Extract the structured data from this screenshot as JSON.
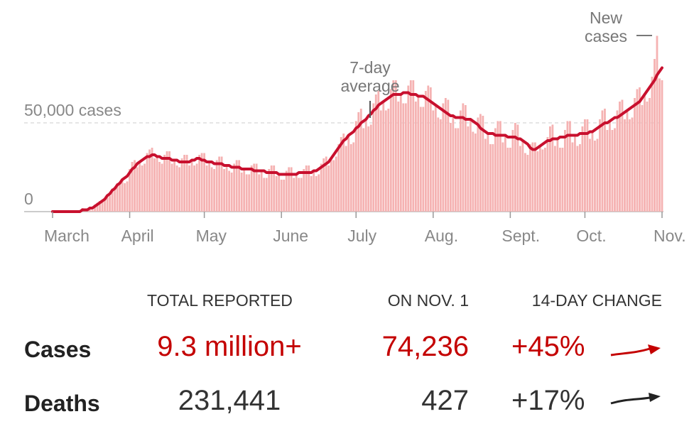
{
  "chart_data": {
    "type": "bar-line",
    "categories": [
      "March",
      null,
      null,
      null,
      null,
      null,
      null,
      null,
      null,
      null,
      null,
      null,
      null,
      null,
      null,
      null,
      null,
      null,
      null,
      null,
      null,
      null,
      null,
      null,
      null,
      null,
      null,
      null,
      null,
      null,
      null,
      "April",
      null,
      null,
      null,
      null,
      null,
      null,
      null,
      null,
      null,
      null,
      null,
      null,
      null,
      null,
      null,
      null,
      null,
      null,
      null,
      null,
      null,
      null,
      null,
      null,
      null,
      null,
      null,
      null,
      null,
      "May",
      null,
      null,
      null,
      null,
      null,
      null,
      null,
      null,
      null,
      null,
      null,
      null,
      null,
      null,
      null,
      null,
      null,
      null,
      null,
      null,
      null,
      null,
      null,
      null,
      null,
      null,
      null,
      null,
      null,
      null,
      "June",
      null,
      null,
      null,
      null,
      null,
      null,
      null,
      null,
      null,
      null,
      null,
      null,
      null,
      null,
      null,
      null,
      null,
      null,
      null,
      null,
      null,
      null,
      null,
      null,
      null,
      null,
      null,
      null,
      null,
      "July",
      null,
      null,
      null,
      null,
      null,
      null,
      null,
      null,
      null,
      null,
      null,
      null,
      null,
      null,
      null,
      null,
      null,
      null,
      null,
      null,
      null,
      null,
      null,
      null,
      null,
      null,
      null,
      null,
      null,
      null,
      "Aug.",
      null,
      null,
      null,
      null,
      null,
      null,
      null,
      null,
      null,
      null,
      null,
      null,
      null,
      null,
      null,
      null,
      null,
      null,
      null,
      null,
      null,
      null,
      null,
      null,
      null,
      null,
      null,
      null,
      null,
      null,
      "Sept.",
      null,
      null,
      null,
      null,
      null,
      null,
      null,
      null,
      null,
      null,
      null,
      null,
      null,
      null,
      null,
      null,
      null,
      null,
      null,
      null,
      null,
      null,
      null,
      null,
      null,
      null,
      null,
      null,
      null,
      "Oct.",
      null,
      null,
      null,
      null,
      null,
      null,
      null,
      null,
      null,
      null,
      null,
      null,
      null,
      null,
      null,
      null,
      null,
      null,
      null,
      null,
      null,
      null,
      null,
      null,
      null,
      null,
      null,
      null,
      null,
      null,
      "Nov."
    ],
    "series": [
      {
        "name": "New cases",
        "type": "bar",
        "color": "#f5b2b2",
        "values": [
          0,
          0,
          0,
          0,
          0,
          0,
          0,
          0,
          0,
          0,
          0,
          0,
          2000,
          1000,
          1000,
          1000,
          1000,
          4000,
          5000,
          6000,
          6000,
          7000,
          8000,
          9000,
          13000,
          14000,
          16000,
          16000,
          18000,
          16000,
          17000,
          24000,
          28000,
          29000,
          25000,
          28000,
          26000,
          27000,
          33000,
          35000,
          36000,
          30000,
          31000,
          28000,
          27000,
          32000,
          34000,
          34000,
          27000,
          29000,
          26000,
          25000,
          30000,
          32000,
          32000,
          26000,
          29000,
          26000,
          27000,
          32000,
          33000,
          33000,
          26000,
          28000,
          25000,
          24000,
          29000,
          31000,
          31000,
          24000,
          26000,
          23000,
          22000,
          27000,
          29000,
          29000,
          22000,
          24000,
          21000,
          21000,
          26000,
          27000,
          27000,
          21000,
          23000,
          19000,
          19000,
          24000,
          26000,
          26000,
          20000,
          21000,
          18000,
          18000,
          23000,
          25000,
          25000,
          19000,
          21000,
          19000,
          19000,
          24000,
          26000,
          26000,
          20000,
          23000,
          20000,
          21000,
          27000,
          30000,
          31000,
          26000,
          30000,
          29000,
          31000,
          38000,
          42000,
          44000,
          37000,
          43000,
          38000,
          39000,
          51000,
          56000,
          58000,
          47000,
          52000,
          48000,
          49000,
          61000,
          66000,
          68000,
          57000,
          62000,
          57000,
          58000,
          69000,
          74000,
          74000,
          62000,
          66000,
          61000,
          61000,
          71000,
          74000,
          74000,
          62000,
          65000,
          59000,
          59000,
          68000,
          71000,
          70000,
          57000,
          60000,
          53000,
          52000,
          61000,
          64000,
          63000,
          50000,
          54000,
          47000,
          47000,
          57000,
          61000,
          60000,
          48000,
          52000,
          45000,
          44000,
          53000,
          55000,
          54000,
          41000,
          44000,
          38000,
          38000,
          47000,
          51000,
          51000,
          39000,
          43000,
          36000,
          36000,
          46000,
          50000,
          49000,
          37000,
          40000,
          33000,
          32000,
          38000,
          39000,
          39000,
          34000,
          37000,
          35000,
          36000,
          42000,
          48000,
          49000,
          37000,
          41000,
          36000,
          36000,
          46000,
          51000,
          51000,
          39000,
          43000,
          37000,
          38000,
          48000,
          52000,
          52000,
          41000,
          45000,
          40000,
          41000,
          52000,
          57000,
          58000,
          46000,
          51000,
          46000,
          47000,
          57000,
          62000,
          63000,
          52000,
          57000,
          52000,
          53000,
          64000,
          69000,
          70000,
          60000,
          66000,
          62000,
          64000,
          76000,
          86000,
          99000,
          75000,
          74000
        ]
      },
      {
        "name": "7-day average",
        "type": "line",
        "color": "#c8102e",
        "values": [
          0,
          0,
          0,
          0,
          0,
          0,
          0,
          0,
          0,
          0,
          0,
          0,
          1000,
          1000,
          1000,
          2000,
          2000,
          3000,
          4000,
          5000,
          6000,
          7000,
          9000,
          10000,
          12000,
          13000,
          15000,
          16000,
          18000,
          19000,
          20000,
          22000,
          24000,
          25000,
          27000,
          28000,
          29000,
          30000,
          31000,
          31000,
          32000,
          32000,
          31000,
          31000,
          30000,
          30000,
          30000,
          30000,
          29000,
          29000,
          29000,
          28000,
          28000,
          28000,
          28000,
          28000,
          29000,
          29000,
          30000,
          30000,
          29000,
          29000,
          28000,
          28000,
          28000,
          27000,
          27000,
          27000,
          27000,
          26000,
          26000,
          26000,
          25000,
          25000,
          25000,
          25000,
          24000,
          24000,
          24000,
          24000,
          24000,
          23000,
          23000,
          23000,
          23000,
          23000,
          22000,
          22000,
          22000,
          22000,
          22000,
          21000,
          21000,
          21000,
          21000,
          21000,
          21000,
          21000,
          21000,
          22000,
          22000,
          22000,
          22000,
          22000,
          22000,
          23000,
          23000,
          24000,
          25000,
          26000,
          27000,
          28000,
          30000,
          32000,
          34000,
          36000,
          38000,
          40000,
          41000,
          43000,
          44000,
          45000,
          47000,
          48000,
          50000,
          51000,
          52000,
          54000,
          55000,
          57000,
          58000,
          60000,
          61000,
          62000,
          63000,
          64000,
          65000,
          66000,
          66000,
          66000,
          66000,
          67000,
          67000,
          67000,
          66000,
          66000,
          66000,
          65000,
          65000,
          65000,
          64000,
          63000,
          62000,
          61000,
          60000,
          59000,
          58000,
          57000,
          56000,
          55000,
          54000,
          54000,
          53000,
          53000,
          53000,
          53000,
          52000,
          52000,
          52000,
          51000,
          50000,
          49000,
          47000,
          46000,
          45000,
          44000,
          44000,
          44000,
          43000,
          43000,
          43000,
          43000,
          43000,
          42000,
          42000,
          42000,
          42000,
          41000,
          41000,
          40000,
          39000,
          38000,
          36000,
          35000,
          35000,
          36000,
          37000,
          38000,
          39000,
          40000,
          40000,
          41000,
          41000,
          41000,
          42000,
          42000,
          42000,
          43000,
          43000,
          43000,
          43000,
          43000,
          44000,
          44000,
          44000,
          44000,
          45000,
          45000,
          46000,
          47000,
          48000,
          49000,
          50000,
          50000,
          51000,
          52000,
          53000,
          53000,
          54000,
          55000,
          56000,
          57000,
          58000,
          59000,
          60000,
          61000,
          62000,
          64000,
          66000,
          68000,
          70000,
          72000,
          74000,
          77000,
          79000,
          81000
        ]
      }
    ],
    "ylim": [
      0,
      100000
    ],
    "yticks": [
      0,
      {
        "value": 50000,
        "label": "50,000 cases"
      }
    ],
    "grid": true
  },
  "table": {
    "columns": [
      "TOTAL REPORTED",
      "ON NOV. 1",
      "14-DAY CHANGE"
    ],
    "rows": [
      {
        "label": "Cases",
        "total": "9.3 million+",
        "on_day": "74,236",
        "change": "+45%",
        "color": "#c40000"
      },
      {
        "label": "Deaths",
        "total": "231,441",
        "on_day": "427",
        "change": "+17%",
        "color": "#333333"
      }
    ]
  }
}
